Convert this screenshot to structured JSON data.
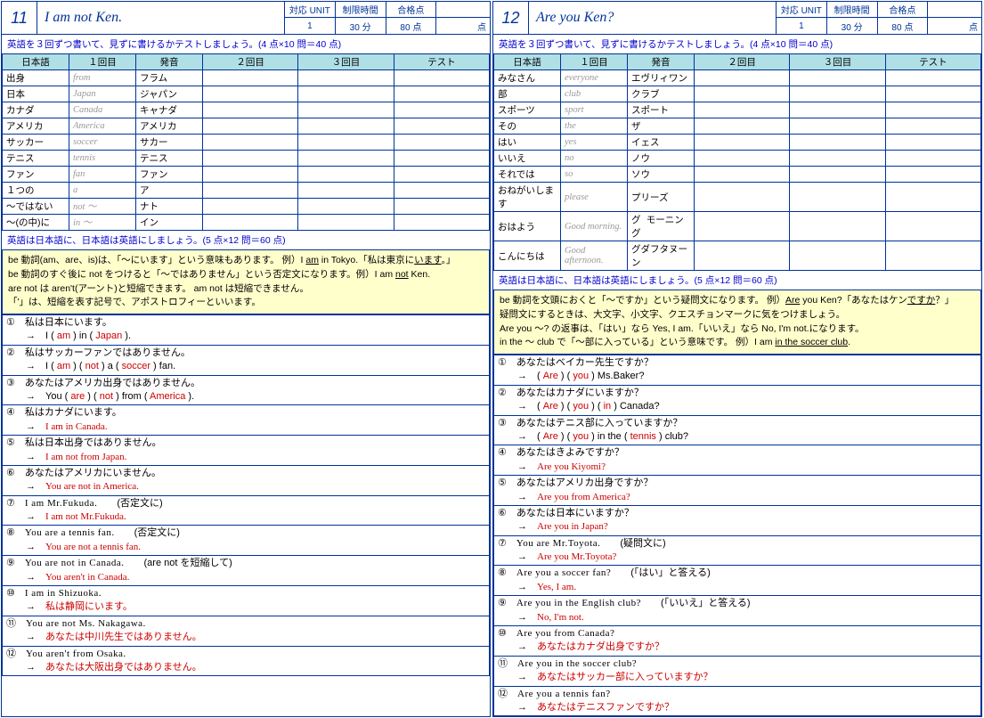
{
  "pages": [
    {
      "num": "11",
      "title": "I am not Ken.",
      "meta_labels": [
        "対応 UNIT",
        "制限時間",
        "合格点",
        ""
      ],
      "meta_values": [
        "1",
        "30 分",
        "80 点",
        "点"
      ],
      "instr1": "英語を３回ずつ書いて、見ずに書けるかテストしましょう。(4 点×10 問＝40 点)",
      "vocab_headers": [
        "日本語",
        "１回目",
        "発音",
        "２回目",
        "３回目",
        "テスト"
      ],
      "vocab": [
        [
          "出身",
          "from",
          "フラム"
        ],
        [
          "日本",
          "Japan",
          "ジャパン"
        ],
        [
          "カナダ",
          "Canada",
          "キャナダ"
        ],
        [
          "アメリカ",
          "America",
          "アメリカ"
        ],
        [
          "サッカー",
          "soccer",
          "サカー"
        ],
        [
          "テニス",
          "tennis",
          "テニス"
        ],
        [
          "ファン",
          "fan",
          "ファン"
        ],
        [
          "１つの",
          "a",
          "ア"
        ],
        [
          "～ではない",
          "not ～",
          "ナト"
        ],
        [
          "～(の中)に",
          "in ～",
          "イン"
        ]
      ],
      "instr2": "英語は日本語に、日本語は英語にしましょう。(5 点×12 問＝60 点)",
      "grammar": "be 動詞(am、are、is)は、「～にいます」という意味もあります。 例）I <u>am</u> in Tokyo.「私は東京に<u>います</u>。」<br>be 動詞のすぐ後に not をつけると「～ではありません」という否定文になります。例）I am <u>not</u> Ken.<br>are not は aren't(アーント)と短縮できます。 am not は短縮できません。<br>「'」は、短縮を表す記号で、アポストロフィーといいます。",
      "questions": [
        {
          "n": "①",
          "q": "私は日本にいます。",
          "a": "→　I ( <span class='fill'>am</span> ) in ( <span class='fill'>Japan</span> )."
        },
        {
          "n": "②",
          "q": "私はサッカーファンではありません。",
          "a": "→　I ( <span class='fill'>am</span> ) ( <span class='fill'>not</span> ) a ( <span class='fill'>soccer</span> ) fan."
        },
        {
          "n": "③",
          "q": "あなたはアメリカ出身ではありません。",
          "a": "→　You ( <span class='fill'>are</span> ) ( <span class='fill'>not</span> ) from ( <span class='fill'>America</span> )."
        },
        {
          "n": "④",
          "q": "私はカナダにいます。",
          "a": "→　<span class='answer'>I am in Canada.</span>"
        },
        {
          "n": "⑤",
          "q": "私は日本出身ではありません。",
          "a": "→　<span class='answer'>I am not from Japan.</span>"
        },
        {
          "n": "⑥",
          "q": "あなたはアメリカにいません。",
          "a": "→　<span class='answer'>You are not in America.</span>"
        },
        {
          "n": "⑦",
          "q": "<span class='eng'>I am Mr.Fukuda.</span>　　(否定文に)",
          "a": "→　<span class='answer'>I am not Mr.Fukuda.</span>"
        },
        {
          "n": "⑧",
          "q": "<span class='eng'>You are a tennis fan.</span>　　(否定文に)",
          "a": "→　<span class='answer'>You are not a tennis fan.</span>"
        },
        {
          "n": "⑨",
          "q": "<span class='eng'>You are not in Canada.</span>　　(are not を短縮して)",
          "a": "→　<span class='answer'>You aren't in Canada.</span>"
        },
        {
          "n": "⑩",
          "q": "<span class='eng'>I am in Shizuoka.</span>",
          "a": "→　<span class='answer'>私は静岡にいます。</span>"
        },
        {
          "n": "⑪",
          "q": "<span class='eng'>You are not Ms. Nakagawa.</span>",
          "a": "→　<span class='answer'>あなたは中川先生ではありません。</span>"
        },
        {
          "n": "⑫",
          "q": "<span class='eng'>You aren't from Osaka.</span>",
          "a": "→　<span class='answer'>あなたは大阪出身ではありません。</span>"
        }
      ]
    },
    {
      "num": "12",
      "title": "Are you Ken?",
      "meta_labels": [
        "対応 UNIT",
        "制限時間",
        "合格点",
        ""
      ],
      "meta_values": [
        "1",
        "30 分",
        "80 点",
        "点"
      ],
      "instr1": "英語を３回ずつ書いて、見ずに書けるかテストしましょう。(4 点×10 問＝40 点)",
      "vocab_headers": [
        "日本語",
        "１回目",
        "発音",
        "２回目",
        "３回目",
        "テスト"
      ],
      "vocab": [
        [
          "みなさん",
          "everyone",
          "エヴリィワン"
        ],
        [
          "部",
          "club",
          "クラブ"
        ],
        [
          "スポーツ",
          "sport",
          "スポート"
        ],
        [
          "その",
          "the",
          "ザ"
        ],
        [
          "はい",
          "yes",
          "イェス"
        ],
        [
          "いいえ",
          "no",
          "ノウ"
        ],
        [
          "それでは",
          "so",
          "ソウ"
        ],
        [
          "おねがいします",
          "please",
          "プリーズ"
        ],
        [
          "おはよう",
          "Good morning.",
          "グ モーニング"
        ],
        [
          "こんにちは",
          "Good afternoon.",
          "グダフタヌーン"
        ]
      ],
      "instr2": "英語は日本語に、日本語は英語にしましょう。(5 点×12 問＝60 点)",
      "grammar": "be 動詞を文頭におくと「～ですか」という疑問文になります。 例）<u>Are</u> you Ken?「あなたはケン<u>ですか</u>？」<br>疑問文にするときは、大文字、小文字、クエスチョンマークに気をつけましょう。<br>Are you ～? の返事は、「はい」なら Yes, I am.「いいえ」なら No, I'm not.になります。<br>in the ～ club で「～部に入っている」という意味です。 例）I am <u>in the soccer club</u>.",
      "questions": [
        {
          "n": "①",
          "q": "あなたはベイカー先生ですか？",
          "a": "→　( <span class='fill'>Are</span> ) ( <span class='fill'>you</span> ) Ms.Baker?"
        },
        {
          "n": "②",
          "q": "あなたはカナダにいますか？",
          "a": "→　( <span class='fill'>Are</span> ) ( <span class='fill'>you</span> ) ( <span class='fill'>in</span> ) Canada?"
        },
        {
          "n": "③",
          "q": "あなたはテニス部に入っていますか？",
          "a": "→　( <span class='fill'>Are</span> ) ( <span class='fill'>you</span> ) in the ( <span class='fill'>tennis</span> ) club?"
        },
        {
          "n": "④",
          "q": "あなたはきよみですか？",
          "a": "→　<span class='answer'>Are you Kiyomi?</span>"
        },
        {
          "n": "⑤",
          "q": "あなたはアメリカ出身ですか？",
          "a": "→　<span class='answer'>Are you from America?</span>"
        },
        {
          "n": "⑥",
          "q": "あなたは日本にいますか？",
          "a": "→　<span class='answer'>Are you in Japan?</span>"
        },
        {
          "n": "⑦",
          "q": "<span class='eng'>You are Mr.Toyota.</span>　　(疑問文に)",
          "a": "→　<span class='answer'>Are you Mr.Toyota?</span>"
        },
        {
          "n": "⑧",
          "q": "<span class='eng'>Are you a soccer fan?</span>　　(「はい」と答える)",
          "a": "→　<span class='answer'>Yes, I am.</span>"
        },
        {
          "n": "⑨",
          "q": "<span class='eng'>Are you in the English club?</span>　　(「いいえ」と答える)",
          "a": "→　<span class='answer'>No, I'm not.</span>"
        },
        {
          "n": "⑩",
          "q": "<span class='eng'>Are you from Canada?</span>",
          "a": "→　<span class='answer'>あなたはカナダ出身ですか？</span>"
        },
        {
          "n": "⑪",
          "q": "<span class='eng'>Are you in the soccer club?</span>",
          "a": "→　<span class='answer'>あなたはサッカー部に入っていますか？</span>"
        },
        {
          "n": "⑫",
          "q": "<span class='eng'>Are you a tennis fan?</span>",
          "a": "→　<span class='answer'>あなたはテニスファンですか？</span>"
        }
      ]
    }
  ]
}
